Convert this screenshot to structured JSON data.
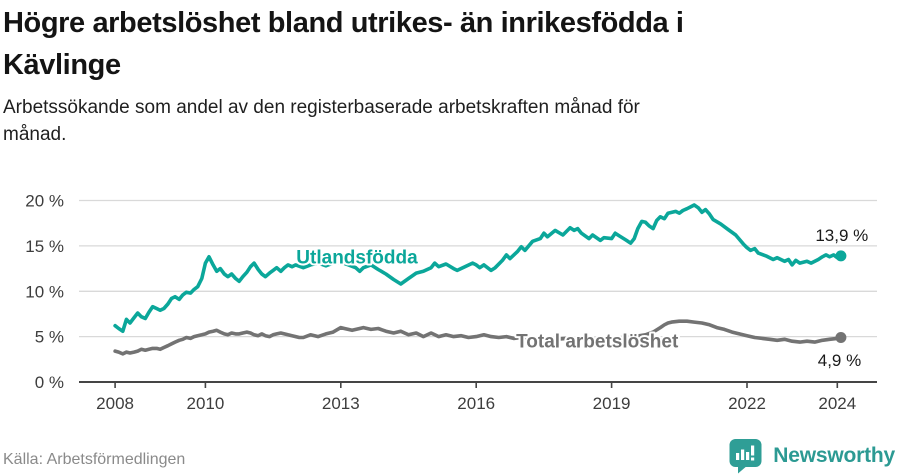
{
  "header": {
    "title_lines": [
      "Högre arbetslöshet bland utrikes- än inrikesfödda i",
      "Kävlinge"
    ],
    "subtitle_lines": [
      "Arbetssökande som andel av den registerbaserade arbetskraften månad för",
      "månad."
    ]
  },
  "footer": {
    "source": "Källa: Arbetsförmedlingen",
    "brand": "Newsworthy"
  },
  "chart_data": {
    "type": "line",
    "title": "Högre arbetslöshet bland utrikes- än inrikesfödda i Kävlinge",
    "subtitle": "Arbetssökande som andel av den registerbaserade arbetskraften månad för månad.",
    "xlabel": "",
    "ylabel": "",
    "x_unit": "decimal-year (monthly data)",
    "xlim": [
      2007.2,
      2024.88
    ],
    "ylim": [
      0,
      20
    ],
    "grid": "horizontal",
    "legend": "inline-series-labels",
    "colors": {
      "grid": "#d9d9d9",
      "axis": "#454545"
    },
    "x_ticks": [
      {
        "value": 2008,
        "label": "2008"
      },
      {
        "value": 2010,
        "label": "2010"
      },
      {
        "value": 2013,
        "label": "2013"
      },
      {
        "value": 2016,
        "label": "2016"
      },
      {
        "value": 2019,
        "label": "2019"
      },
      {
        "value": 2022,
        "label": "2022"
      },
      {
        "value": 2024,
        "label": "2024"
      }
    ],
    "y_ticks": [
      {
        "value": 0,
        "label": "0 %"
      },
      {
        "value": 5,
        "label": "5 %"
      },
      {
        "value": 10,
        "label": "10 %"
      },
      {
        "value": 15,
        "label": "15 %"
      },
      {
        "value": 20,
        "label": "20 %"
      }
    ],
    "series": [
      {
        "id": "utlandsfodda",
        "name": "Utlandsfödda",
        "color": "#0ba79a",
        "end_value": 13.9,
        "end_value_label": "13,9 %",
        "label_pos": [
          2013.36,
          13.85
        ],
        "value_label_pos": [
          2024.1,
          16.3
        ],
        "points": [
          [
            2008.0,
            6.2
          ],
          [
            2008.08,
            5.9
          ],
          [
            2008.17,
            5.6
          ],
          [
            2008.25,
            6.9
          ],
          [
            2008.33,
            6.5
          ],
          [
            2008.42,
            7.1
          ],
          [
            2008.5,
            7.6
          ],
          [
            2008.58,
            7.2
          ],
          [
            2008.67,
            7.0
          ],
          [
            2008.75,
            7.7
          ],
          [
            2008.83,
            8.3
          ],
          [
            2008.92,
            8.1
          ],
          [
            2009.0,
            7.9
          ],
          [
            2009.08,
            8.1
          ],
          [
            2009.17,
            8.6
          ],
          [
            2009.25,
            9.2
          ],
          [
            2009.33,
            9.4
          ],
          [
            2009.42,
            9.1
          ],
          [
            2009.5,
            9.6
          ],
          [
            2009.58,
            9.9
          ],
          [
            2009.67,
            9.8
          ],
          [
            2009.75,
            10.2
          ],
          [
            2009.83,
            10.5
          ],
          [
            2009.92,
            11.4
          ],
          [
            2010.0,
            13.1
          ],
          [
            2010.08,
            13.8
          ],
          [
            2010.17,
            12.9
          ],
          [
            2010.25,
            12.2
          ],
          [
            2010.33,
            12.5
          ],
          [
            2010.42,
            11.9
          ],
          [
            2010.5,
            11.6
          ],
          [
            2010.58,
            11.9
          ],
          [
            2010.67,
            11.4
          ],
          [
            2010.75,
            11.1
          ],
          [
            2010.83,
            11.6
          ],
          [
            2010.92,
            12.1
          ],
          [
            2011.0,
            12.7
          ],
          [
            2011.08,
            13.1
          ],
          [
            2011.17,
            12.4
          ],
          [
            2011.25,
            11.9
          ],
          [
            2011.33,
            11.6
          ],
          [
            2011.42,
            12.0
          ],
          [
            2011.5,
            12.3
          ],
          [
            2011.58,
            12.6
          ],
          [
            2011.67,
            12.2
          ],
          [
            2011.75,
            12.6
          ],
          [
            2011.83,
            12.9
          ],
          [
            2011.92,
            12.7
          ],
          [
            2012.0,
            12.9
          ],
          [
            2012.17,
            12.6
          ],
          [
            2012.33,
            12.9
          ],
          [
            2012.5,
            13.1
          ],
          [
            2012.67,
            12.8
          ],
          [
            2012.83,
            13.1
          ],
          [
            2013.0,
            13.2
          ],
          [
            2013.17,
            12.9
          ],
          [
            2013.33,
            12.6
          ],
          [
            2013.42,
            12.2
          ],
          [
            2013.5,
            12.6
          ],
          [
            2013.67,
            12.9
          ],
          [
            2013.83,
            12.4
          ],
          [
            2014.0,
            11.9
          ],
          [
            2014.17,
            11.3
          ],
          [
            2014.33,
            10.8
          ],
          [
            2014.5,
            11.4
          ],
          [
            2014.67,
            12.0
          ],
          [
            2014.83,
            12.2
          ],
          [
            2015.0,
            12.6
          ],
          [
            2015.08,
            13.1
          ],
          [
            2015.17,
            12.7
          ],
          [
            2015.33,
            13.0
          ],
          [
            2015.5,
            12.5
          ],
          [
            2015.58,
            12.3
          ],
          [
            2015.75,
            12.7
          ],
          [
            2015.92,
            13.1
          ],
          [
            2016.0,
            12.9
          ],
          [
            2016.08,
            12.6
          ],
          [
            2016.17,
            12.9
          ],
          [
            2016.33,
            12.3
          ],
          [
            2016.42,
            12.6
          ],
          [
            2016.58,
            13.4
          ],
          [
            2016.67,
            14.0
          ],
          [
            2016.75,
            13.6
          ],
          [
            2016.92,
            14.4
          ],
          [
            2017.0,
            14.9
          ],
          [
            2017.08,
            14.5
          ],
          [
            2017.25,
            15.5
          ],
          [
            2017.42,
            15.8
          ],
          [
            2017.5,
            16.4
          ],
          [
            2017.58,
            16.0
          ],
          [
            2017.75,
            16.7
          ],
          [
            2017.92,
            16.2
          ],
          [
            2018.0,
            16.6
          ],
          [
            2018.08,
            17.0
          ],
          [
            2018.17,
            16.7
          ],
          [
            2018.25,
            16.9
          ],
          [
            2018.33,
            16.4
          ],
          [
            2018.5,
            15.8
          ],
          [
            2018.58,
            16.2
          ],
          [
            2018.75,
            15.6
          ],
          [
            2018.83,
            15.9
          ],
          [
            2019.0,
            15.8
          ],
          [
            2019.08,
            16.4
          ],
          [
            2019.17,
            16.1
          ],
          [
            2019.33,
            15.6
          ],
          [
            2019.42,
            15.3
          ],
          [
            2019.5,
            15.8
          ],
          [
            2019.58,
            16.9
          ],
          [
            2019.67,
            17.7
          ],
          [
            2019.75,
            17.6
          ],
          [
            2019.83,
            17.2
          ],
          [
            2019.92,
            16.9
          ],
          [
            2020.0,
            17.8
          ],
          [
            2020.08,
            18.2
          ],
          [
            2020.17,
            18.0
          ],
          [
            2020.25,
            18.6
          ],
          [
            2020.42,
            18.8
          ],
          [
            2020.5,
            18.6
          ],
          [
            2020.58,
            18.9
          ],
          [
            2020.67,
            19.1
          ],
          [
            2020.75,
            19.3
          ],
          [
            2020.83,
            19.5
          ],
          [
            2020.92,
            19.2
          ],
          [
            2021.0,
            18.7
          ],
          [
            2021.08,
            19.0
          ],
          [
            2021.17,
            18.5
          ],
          [
            2021.25,
            17.9
          ],
          [
            2021.42,
            17.4
          ],
          [
            2021.58,
            16.8
          ],
          [
            2021.75,
            16.2
          ],
          [
            2021.92,
            15.2
          ],
          [
            2022.0,
            14.8
          ],
          [
            2022.08,
            14.5
          ],
          [
            2022.17,
            14.7
          ],
          [
            2022.25,
            14.2
          ],
          [
            2022.42,
            13.9
          ],
          [
            2022.58,
            13.5
          ],
          [
            2022.67,
            13.7
          ],
          [
            2022.83,
            13.3
          ],
          [
            2022.92,
            13.5
          ],
          [
            2023.0,
            12.9
          ],
          [
            2023.08,
            13.4
          ],
          [
            2023.17,
            13.1
          ],
          [
            2023.33,
            13.3
          ],
          [
            2023.42,
            13.1
          ],
          [
            2023.58,
            13.5
          ],
          [
            2023.67,
            13.8
          ],
          [
            2023.75,
            14.0
          ],
          [
            2023.83,
            13.8
          ],
          [
            2023.92,
            14.0
          ],
          [
            2024.0,
            13.7
          ],
          [
            2024.08,
            13.9
          ]
        ]
      },
      {
        "id": "total",
        "name": "Total arbetslöshet",
        "color": "#737373",
        "end_value": 4.9,
        "end_value_label": "4,9 %",
        "label_pos": [
          2018.68,
          4.55
        ],
        "value_label_pos": [
          2024.05,
          2.55
        ],
        "points": [
          [
            2008.0,
            3.4
          ],
          [
            2008.08,
            3.3
          ],
          [
            2008.17,
            3.1
          ],
          [
            2008.25,
            3.3
          ],
          [
            2008.33,
            3.2
          ],
          [
            2008.42,
            3.3
          ],
          [
            2008.5,
            3.4
          ],
          [
            2008.58,
            3.6
          ],
          [
            2008.67,
            3.5
          ],
          [
            2008.75,
            3.6
          ],
          [
            2008.83,
            3.7
          ],
          [
            2008.92,
            3.7
          ],
          [
            2009.0,
            3.6
          ],
          [
            2009.08,
            3.8
          ],
          [
            2009.17,
            4.0
          ],
          [
            2009.25,
            4.2
          ],
          [
            2009.33,
            4.4
          ],
          [
            2009.42,
            4.6
          ],
          [
            2009.5,
            4.7
          ],
          [
            2009.58,
            4.9
          ],
          [
            2009.67,
            4.8
          ],
          [
            2009.75,
            5.0
          ],
          [
            2009.83,
            5.1
          ],
          [
            2009.92,
            5.2
          ],
          [
            2010.0,
            5.3
          ],
          [
            2010.08,
            5.5
          ],
          [
            2010.17,
            5.6
          ],
          [
            2010.25,
            5.7
          ],
          [
            2010.33,
            5.5
          ],
          [
            2010.42,
            5.3
          ],
          [
            2010.5,
            5.2
          ],
          [
            2010.58,
            5.4
          ],
          [
            2010.67,
            5.3
          ],
          [
            2010.75,
            5.3
          ],
          [
            2010.83,
            5.4
          ],
          [
            2010.92,
            5.5
          ],
          [
            2011.0,
            5.4
          ],
          [
            2011.08,
            5.2
          ],
          [
            2011.17,
            5.1
          ],
          [
            2011.25,
            5.3
          ],
          [
            2011.33,
            5.1
          ],
          [
            2011.42,
            5.0
          ],
          [
            2011.5,
            5.2
          ],
          [
            2011.58,
            5.3
          ],
          [
            2011.67,
            5.4
          ],
          [
            2011.75,
            5.3
          ],
          [
            2011.83,
            5.2
          ],
          [
            2011.92,
            5.1
          ],
          [
            2012.0,
            5.0
          ],
          [
            2012.08,
            4.9
          ],
          [
            2012.17,
            4.9
          ],
          [
            2012.33,
            5.2
          ],
          [
            2012.5,
            5.0
          ],
          [
            2012.67,
            5.3
          ],
          [
            2012.83,
            5.5
          ],
          [
            2013.0,
            6.0
          ],
          [
            2013.08,
            5.9
          ],
          [
            2013.25,
            5.7
          ],
          [
            2013.42,
            5.9
          ],
          [
            2013.5,
            6.0
          ],
          [
            2013.67,
            5.8
          ],
          [
            2013.83,
            5.9
          ],
          [
            2014.0,
            5.6
          ],
          [
            2014.17,
            5.4
          ],
          [
            2014.33,
            5.6
          ],
          [
            2014.5,
            5.2
          ],
          [
            2014.67,
            5.4
          ],
          [
            2014.83,
            5.0
          ],
          [
            2015.0,
            5.4
          ],
          [
            2015.17,
            5.0
          ],
          [
            2015.33,
            5.2
          ],
          [
            2015.5,
            5.0
          ],
          [
            2015.67,
            5.1
          ],
          [
            2015.83,
            4.9
          ],
          [
            2016.0,
            5.0
          ],
          [
            2016.17,
            5.2
          ],
          [
            2016.33,
            5.0
          ],
          [
            2016.5,
            4.9
          ],
          [
            2016.67,
            5.0
          ],
          [
            2016.83,
            4.8
          ],
          [
            2017.0,
            4.9
          ],
          [
            2017.25,
            4.8
          ],
          [
            2017.5,
            4.9
          ],
          [
            2017.75,
            4.7
          ],
          [
            2018.0,
            4.8
          ],
          [
            2018.25,
            4.7
          ],
          [
            2018.5,
            4.8
          ],
          [
            2018.75,
            4.7
          ],
          [
            2019.0,
            4.8
          ],
          [
            2019.25,
            4.9
          ],
          [
            2019.5,
            5.0
          ],
          [
            2019.75,
            5.2
          ],
          [
            2019.92,
            5.5
          ],
          [
            2020.08,
            6.0
          ],
          [
            2020.17,
            6.3
          ],
          [
            2020.25,
            6.5
          ],
          [
            2020.33,
            6.6
          ],
          [
            2020.5,
            6.7
          ],
          [
            2020.67,
            6.7
          ],
          [
            2020.83,
            6.6
          ],
          [
            2021.0,
            6.5
          ],
          [
            2021.17,
            6.3
          ],
          [
            2021.33,
            6.0
          ],
          [
            2021.5,
            5.8
          ],
          [
            2021.67,
            5.5
          ],
          [
            2021.83,
            5.3
          ],
          [
            2022.0,
            5.1
          ],
          [
            2022.17,
            4.9
          ],
          [
            2022.33,
            4.8
          ],
          [
            2022.5,
            4.7
          ],
          [
            2022.67,
            4.6
          ],
          [
            2022.83,
            4.7
          ],
          [
            2023.0,
            4.5
          ],
          [
            2023.17,
            4.4
          ],
          [
            2023.33,
            4.5
          ],
          [
            2023.5,
            4.4
          ],
          [
            2023.67,
            4.6
          ],
          [
            2023.83,
            4.7
          ],
          [
            2024.0,
            4.8
          ],
          [
            2024.08,
            4.9
          ]
        ]
      }
    ]
  }
}
